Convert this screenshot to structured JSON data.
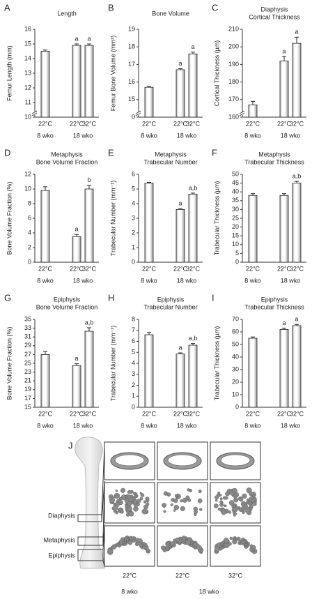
{
  "chart_data": [
    {
      "type": "bar",
      "panel": "A",
      "title": [
        "Length"
      ],
      "ylabel": "Femur Length (mm)",
      "categories": [
        "22°C",
        "22°C",
        "32°C"
      ],
      "groups": [
        "8 wko",
        "18 wko"
      ],
      "values": [
        14.5,
        14.9,
        14.9
      ],
      "errors": [
        0.08,
        0.1,
        0.1
      ],
      "annotations": [
        null,
        "a",
        "a"
      ],
      "ylim": [
        10,
        16
      ],
      "yticks": [
        10,
        11,
        12,
        13,
        14,
        15,
        16
      ],
      "axis_break": true
    },
    {
      "type": "bar",
      "panel": "B",
      "title": [
        "Bone Volume"
      ],
      "ylabel": "Femur Bone Volume (mm³)",
      "categories": [
        "22°C",
        "22°C",
        "32°C"
      ],
      "groups": [
        "8 wko",
        "18 wko"
      ],
      "values": [
        15.7,
        16.7,
        17.6
      ],
      "errors": [
        0.05,
        0.06,
        0.1
      ],
      "annotations": [
        null,
        "a",
        "a"
      ],
      "ylim": [
        14,
        19
      ],
      "yticks": [
        15,
        16,
        17,
        18,
        19
      ],
      "axis_break": true,
      "break_tick": 0
    },
    {
      "type": "bar",
      "panel": "C",
      "title": [
        "Diaphysis",
        "Cortical Thickness"
      ],
      "ylabel": "Cortical Thickness (µm)",
      "categories": [
        "22°C",
        "22°C",
        "32°C"
      ],
      "groups": [
        "8 wko",
        "18 wko"
      ],
      "values": [
        167,
        192,
        202
      ],
      "errors": [
        2,
        2.5,
        3.5
      ],
      "annotations": [
        null,
        "a",
        "a"
      ],
      "ylim": [
        160,
        210
      ],
      "yticks": [
        160,
        170,
        180,
        190,
        200,
        210
      ],
      "axis_break": true
    },
    {
      "type": "bar",
      "panel": "D",
      "title": [
        "Metaphysis",
        "Bone Volume Fraction"
      ],
      "ylabel": "Bone Volume Fraction (%)",
      "categories": [
        "22°C",
        "22°C",
        "32°C"
      ],
      "groups": [
        "8 wko",
        "18 wko"
      ],
      "values": [
        9.8,
        3.5,
        10.0
      ],
      "errors": [
        0.5,
        0.3,
        0.5
      ],
      "annotations": [
        null,
        "a",
        "b"
      ],
      "ylim": [
        0,
        12
      ],
      "yticks": [
        0,
        2,
        4,
        6,
        8,
        10,
        12
      ]
    },
    {
      "type": "bar",
      "panel": "E",
      "title": [
        "Metaphysis",
        "Trabecular Number"
      ],
      "ylabel": "Trabecular Number (mm⁻¹)",
      "categories": [
        "22°C",
        "22°C",
        "32°C"
      ],
      "groups": [
        "8 wko",
        "18 wko"
      ],
      "values": [
        5.4,
        3.6,
        4.65
      ],
      "errors": [
        0.05,
        0.05,
        0.07
      ],
      "annotations": [
        null,
        "a",
        "a,b"
      ],
      "ylim": [
        0,
        6
      ],
      "yticks": [
        0,
        1,
        2,
        3,
        4,
        5,
        6
      ]
    },
    {
      "type": "bar",
      "panel": "F",
      "title": [
        "Metaphysis",
        "Trabecular Thickness"
      ],
      "ylabel": "Trabecular Thickness (µm)",
      "categories": [
        "22°C",
        "22°C",
        "32°C"
      ],
      "groups": [
        "8 wko",
        "18 wko"
      ],
      "values": [
        38,
        38,
        45
      ],
      "errors": [
        1,
        1,
        1
      ],
      "annotations": [
        null,
        null,
        "a,b"
      ],
      "ylim": [
        0,
        50
      ],
      "yticks": [
        0,
        5,
        10,
        15,
        20,
        25,
        30,
        35,
        40,
        45,
        50
      ]
    },
    {
      "type": "bar",
      "panel": "G",
      "title": [
        "Epiphysis",
        "Bone Volume Fraction"
      ],
      "ylabel": "Bone Volume Fraction (%)",
      "categories": [
        "22°C",
        "22°C",
        "32°C"
      ],
      "groups": [
        "8 wko",
        "18 wko"
      ],
      "values": [
        27,
        24.5,
        32.3
      ],
      "errors": [
        0.7,
        0.4,
        0.8
      ],
      "annotations": [
        null,
        "a",
        "a,b"
      ],
      "ylim": [
        15,
        35
      ],
      "yticks": [
        15,
        17,
        19,
        21,
        23,
        25,
        27,
        29,
        31,
        33,
        35
      ]
    },
    {
      "type": "bar",
      "panel": "H",
      "title": [
        "Epiphysis",
        "Trabecular Number"
      ],
      "ylabel": "Trabecular Number (mm⁻¹)",
      "categories": [
        "22°C",
        "22°C",
        "32°C"
      ],
      "groups": [
        "8 wko",
        "18 wko"
      ],
      "values": [
        6.6,
        4.85,
        5.65
      ],
      "errors": [
        0.2,
        0.1,
        0.15
      ],
      "annotations": [
        null,
        "a",
        "a,b"
      ],
      "ylim": [
        0,
        8
      ],
      "yticks": [
        0,
        1,
        2,
        3,
        4,
        5,
        6,
        7,
        8
      ]
    },
    {
      "type": "bar",
      "panel": "I",
      "title": [
        "Epiphysis",
        "Trabecular Thickness"
      ],
      "ylabel": "Trabecular Thickness (µm)",
      "categories": [
        "22°C",
        "22°C",
        "32°C"
      ],
      "groups": [
        "8 wko",
        "18 wko"
      ],
      "values": [
        55,
        62,
        65
      ],
      "errors": [
        1,
        1,
        1
      ],
      "annotations": [
        null,
        "a",
        "a"
      ],
      "ylim": [
        0,
        70
      ],
      "yticks": [
        0,
        10,
        20,
        30,
        40,
        50,
        60,
        70
      ]
    }
  ],
  "image_panel": {
    "panel": "J",
    "regions": [
      "Diaphysis",
      "Metaphysis",
      "Epiphysis"
    ],
    "columns": [
      "22°C",
      "22°C",
      "32°C"
    ],
    "groups": [
      "8 wko",
      "18 wko"
    ]
  }
}
